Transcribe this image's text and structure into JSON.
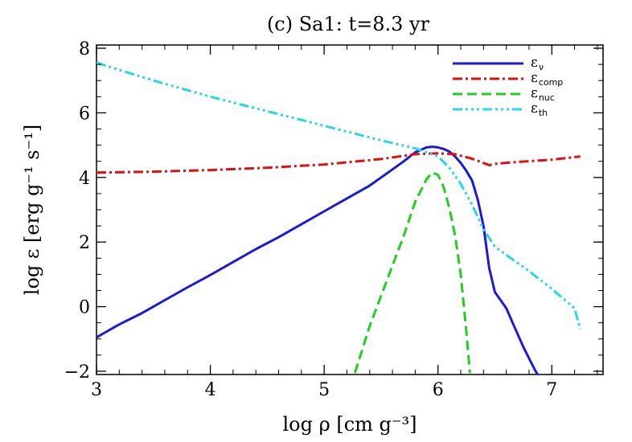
{
  "chart_data": {
    "type": "line",
    "title": "(c) Sa1: t=8.3 yr",
    "xlabel": "log ρ [cm g⁻³]",
    "ylabel": "log ε [erg g⁻¹ s⁻¹]",
    "xlim": [
      3,
      7.45
    ],
    "ylim": [
      -2.1,
      8.1
    ],
    "xticks": [
      "3",
      "4",
      "5",
      "6",
      "7"
    ],
    "yticks": [
      "−2",
      "0",
      "2",
      "4",
      "6",
      "8"
    ],
    "legend_position": "top-right",
    "grid": false,
    "series": [
      {
        "name": "εν",
        "legend_main": "ε",
        "legend_sub": "ν",
        "color": "#1a1adc",
        "dash": "solid",
        "x": [
          3.0,
          3.2,
          3.4,
          3.6,
          3.8,
          4.0,
          4.2,
          4.4,
          4.6,
          4.8,
          5.0,
          5.2,
          5.4,
          5.6,
          5.7,
          5.8,
          5.9,
          5.95,
          6.0,
          6.05,
          6.1,
          6.15,
          6.2,
          6.25,
          6.3,
          6.35,
          6.4,
          6.45,
          6.5,
          6.55,
          6.6,
          6.65,
          6.7,
          6.75,
          6.8,
          6.85,
          6.9
        ],
        "y": [
          -0.95,
          -0.55,
          -0.2,
          0.2,
          0.6,
          0.98,
          1.38,
          1.78,
          2.15,
          2.55,
          2.95,
          3.35,
          3.75,
          4.25,
          4.5,
          4.78,
          4.93,
          4.95,
          4.93,
          4.88,
          4.8,
          4.65,
          4.45,
          4.2,
          3.9,
          3.3,
          2.5,
          1.2,
          0.45,
          0.2,
          -0.05,
          -0.45,
          -0.85,
          -1.25,
          -1.6,
          -1.95,
          -2.25
        ]
      },
      {
        "name": "εcomp",
        "legend_main": "ε",
        "legend_sub": "comp",
        "color": "#e01010",
        "dash": "dashdot",
        "x": [
          3.0,
          3.5,
          4.0,
          4.5,
          5.0,
          5.5,
          5.8,
          6.0,
          6.15,
          6.3,
          6.45,
          6.5,
          6.7,
          7.0,
          7.25
        ],
        "y": [
          4.15,
          4.18,
          4.23,
          4.3,
          4.4,
          4.57,
          4.72,
          4.75,
          4.72,
          4.58,
          4.38,
          4.42,
          4.48,
          4.55,
          4.65
        ]
      },
      {
        "name": "εnuc",
        "legend_main": "ε",
        "legend_sub": "nuc",
        "color": "#20d020",
        "dash": "dashed",
        "x": [
          5.27,
          5.4,
          5.55,
          5.7,
          5.8,
          5.9,
          5.95,
          6.0,
          6.05,
          6.1,
          6.15,
          6.2,
          6.25,
          6.28
        ],
        "y": [
          -2.05,
          -0.6,
          0.8,
          2.2,
          3.25,
          3.95,
          4.15,
          4.08,
          3.7,
          3.05,
          2.2,
          1.0,
          -0.8,
          -2.05
        ]
      },
      {
        "name": "εth",
        "legend_main": "ε",
        "legend_sub": "th",
        "color": "#28d8e8",
        "dash": "dashdotdotdot",
        "x": [
          3.0,
          3.5,
          4.0,
          4.5,
          5.0,
          5.5,
          5.8,
          6.0,
          6.1,
          6.2,
          6.3,
          6.4,
          6.5,
          6.6,
          6.8,
          7.0,
          7.1,
          7.2,
          7.25
        ],
        "y": [
          7.55,
          7.0,
          6.5,
          6.05,
          5.6,
          5.15,
          4.9,
          4.65,
          4.3,
          3.8,
          3.15,
          2.4,
          1.85,
          1.6,
          1.1,
          0.55,
          0.25,
          -0.05,
          -0.7
        ]
      }
    ]
  }
}
